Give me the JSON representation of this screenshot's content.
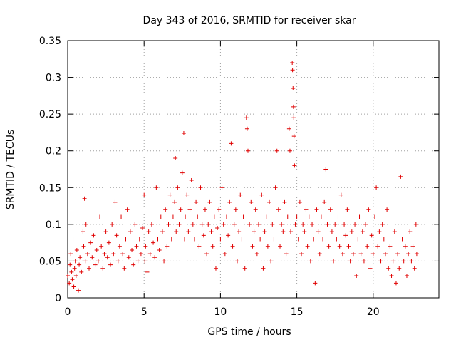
{
  "chart_data": {
    "type": "scatter",
    "title": "Day 343 of 2016, SRMTID for receiver skar",
    "xlabel": "GPS time / hours",
    "ylabel": "SRMTID / TECUs",
    "xlim": [
      0,
      24.3
    ],
    "ylim": [
      0,
      0.35
    ],
    "xticks": [
      0,
      5,
      10,
      15,
      20
    ],
    "xtick_labels": [
      "0",
      "5",
      "10",
      "15",
      "20"
    ],
    "yticks": [
      0,
      0.05,
      0.1,
      0.15,
      0.2,
      0.25,
      0.3,
      0.35
    ],
    "ytick_labels": [
      "0",
      "0.05",
      "0.1",
      "0.15",
      "0.2",
      "0.25",
      "0.3",
      "0.35"
    ],
    "grid": true,
    "marker": "plus",
    "color": "#e00000",
    "series": [
      {
        "name": "SRMTID",
        "points": [
          [
            0.0,
            0.03
          ],
          [
            0.1,
            0.02
          ],
          [
            0.15,
            0.045
          ],
          [
            0.2,
            0.06
          ],
          [
            0.25,
            0.035
          ],
          [
            0.3,
            0.025
          ],
          [
            0.35,
            0.08
          ],
          [
            0.4,
            0.015
          ],
          [
            0.45,
            0.04
          ],
          [
            0.5,
            0.05
          ],
          [
            0.55,
            0.03
          ],
          [
            0.6,
            0.065
          ],
          [
            0.7,
            0.01
          ],
          [
            0.75,
            0.045
          ],
          [
            0.8,
            0.055
          ],
          [
            0.9,
            0.035
          ],
          [
            1.0,
            0.09
          ],
          [
            1.05,
            0.07
          ],
          [
            1.1,
            0.135
          ],
          [
            1.15,
            0.05
          ],
          [
            1.2,
            0.1
          ],
          [
            1.3,
            0.06
          ],
          [
            1.4,
            0.04
          ],
          [
            1.5,
            0.075
          ],
          [
            1.6,
            0.055
          ],
          [
            1.7,
            0.085
          ],
          [
            1.8,
            0.045
          ],
          [
            1.9,
            0.065
          ],
          [
            2.0,
            0.05
          ],
          [
            2.1,
            0.11
          ],
          [
            2.2,
            0.07
          ],
          [
            2.3,
            0.04
          ],
          [
            2.4,
            0.06
          ],
          [
            2.5,
            0.09
          ],
          [
            2.6,
            0.055
          ],
          [
            2.7,
            0.075
          ],
          [
            2.8,
            0.045
          ],
          [
            2.9,
            0.1
          ],
          [
            3.0,
            0.06
          ],
          [
            3.1,
            0.13
          ],
          [
            3.2,
            0.085
          ],
          [
            3.3,
            0.05
          ],
          [
            3.4,
            0.07
          ],
          [
            3.5,
            0.11
          ],
          [
            3.6,
            0.06
          ],
          [
            3.7,
            0.04
          ],
          [
            3.8,
            0.08
          ],
          [
            3.9,
            0.12
          ],
          [
            4.0,
            0.055
          ],
          [
            4.1,
            0.09
          ],
          [
            4.2,
            0.065
          ],
          [
            4.3,
            0.045
          ],
          [
            4.4,
            0.1
          ],
          [
            4.5,
            0.07
          ],
          [
            4.6,
            0.05
          ],
          [
            4.7,
            0.08
          ],
          [
            4.8,
            0.06
          ],
          [
            4.9,
            0.095
          ],
          [
            5.0,
            0.14
          ],
          [
            5.05,
            0.05
          ],
          [
            5.1,
            0.07
          ],
          [
            5.2,
            0.035
          ],
          [
            5.3,
            0.09
          ],
          [
            5.4,
            0.06
          ],
          [
            5.5,
            0.1
          ],
          [
            5.6,
            0.075
          ],
          [
            5.7,
            0.055
          ],
          [
            5.8,
            0.15
          ],
          [
            5.9,
            0.08
          ],
          [
            6.0,
            0.065
          ],
          [
            6.1,
            0.11
          ],
          [
            6.2,
            0.09
          ],
          [
            6.3,
            0.05
          ],
          [
            6.4,
            0.12
          ],
          [
            6.5,
            0.07
          ],
          [
            6.6,
            0.1
          ],
          [
            6.7,
            0.14
          ],
          [
            6.8,
            0.08
          ],
          [
            6.9,
            0.11
          ],
          [
            7.0,
            0.13
          ],
          [
            7.05,
            0.19
          ],
          [
            7.1,
            0.09
          ],
          [
            7.2,
            0.15
          ],
          [
            7.3,
            0.1
          ],
          [
            7.4,
            0.12
          ],
          [
            7.5,
            0.17
          ],
          [
            7.6,
            0.224
          ],
          [
            7.65,
            0.08
          ],
          [
            7.7,
            0.11
          ],
          [
            7.8,
            0.14
          ],
          [
            7.9,
            0.09
          ],
          [
            8.0,
            0.12
          ],
          [
            8.1,
            0.16
          ],
          [
            8.2,
            0.1
          ],
          [
            8.3,
            0.08
          ],
          [
            8.4,
            0.13
          ],
          [
            8.5,
            0.11
          ],
          [
            8.6,
            0.07
          ],
          [
            8.7,
            0.15
          ],
          [
            8.8,
            0.1
          ],
          [
            8.9,
            0.085
          ],
          [
            9.0,
            0.12
          ],
          [
            9.1,
            0.06
          ],
          [
            9.2,
            0.1
          ],
          [
            9.3,
            0.13
          ],
          [
            9.4,
            0.09
          ],
          [
            9.5,
            0.07
          ],
          [
            9.6,
            0.11
          ],
          [
            9.7,
            0.04
          ],
          [
            9.8,
            0.095
          ],
          [
            9.9,
            0.12
          ],
          [
            10.0,
            0.08
          ],
          [
            10.1,
            0.15
          ],
          [
            10.2,
            0.1
          ],
          [
            10.3,
            0.06
          ],
          [
            10.4,
            0.11
          ],
          [
            10.5,
            0.085
          ],
          [
            10.6,
            0.13
          ],
          [
            10.7,
            0.21
          ],
          [
            10.8,
            0.07
          ],
          [
            10.9,
            0.1
          ],
          [
            11.0,
            0.12
          ],
          [
            11.1,
            0.05
          ],
          [
            11.2,
            0.09
          ],
          [
            11.3,
            0.14
          ],
          [
            11.4,
            0.08
          ],
          [
            11.5,
            0.11
          ],
          [
            11.6,
            0.04
          ],
          [
            11.7,
            0.245
          ],
          [
            11.75,
            0.23
          ],
          [
            11.8,
            0.2
          ],
          [
            11.9,
            0.1
          ],
          [
            12.0,
            0.13
          ],
          [
            12.1,
            0.07
          ],
          [
            12.2,
            0.09
          ],
          [
            12.3,
            0.12
          ],
          [
            12.4,
            0.06
          ],
          [
            12.5,
            0.1
          ],
          [
            12.6,
            0.08
          ],
          [
            12.7,
            0.14
          ],
          [
            12.8,
            0.04
          ],
          [
            12.9,
            0.09
          ],
          [
            13.0,
            0.11
          ],
          [
            13.1,
            0.07
          ],
          [
            13.2,
            0.13
          ],
          [
            13.3,
            0.05
          ],
          [
            13.4,
            0.1
          ],
          [
            13.5,
            0.08
          ],
          [
            13.6,
            0.15
          ],
          [
            13.7,
            0.2
          ],
          [
            13.8,
            0.12
          ],
          [
            13.9,
            0.07
          ],
          [
            14.0,
            0.1
          ],
          [
            14.1,
            0.09
          ],
          [
            14.2,
            0.13
          ],
          [
            14.3,
            0.06
          ],
          [
            14.4,
            0.11
          ],
          [
            14.5,
            0.23
          ],
          [
            14.55,
            0.2
          ],
          [
            14.6,
            0.09
          ],
          [
            14.7,
            0.32
          ],
          [
            14.72,
            0.31
          ],
          [
            14.75,
            0.285
          ],
          [
            14.78,
            0.26
          ],
          [
            14.8,
            0.245
          ],
          [
            14.82,
            0.22
          ],
          [
            14.85,
            0.18
          ],
          [
            14.9,
            0.1
          ],
          [
            15.0,
            0.11
          ],
          [
            15.1,
            0.08
          ],
          [
            15.2,
            0.13
          ],
          [
            15.3,
            0.06
          ],
          [
            15.4,
            0.1
          ],
          [
            15.5,
            0.09
          ],
          [
            15.6,
            0.12
          ],
          [
            15.7,
            0.07
          ],
          [
            15.8,
            0.11
          ],
          [
            15.9,
            0.05
          ],
          [
            16.0,
            0.1
          ],
          [
            16.1,
            0.08
          ],
          [
            16.2,
            0.02
          ],
          [
            16.3,
            0.12
          ],
          [
            16.4,
            0.09
          ],
          [
            16.5,
            0.06
          ],
          [
            16.6,
            0.11
          ],
          [
            16.7,
            0.08
          ],
          [
            16.8,
            0.13
          ],
          [
            16.9,
            0.175
          ],
          [
            17.0,
            0.1
          ],
          [
            17.1,
            0.07
          ],
          [
            17.2,
            0.12
          ],
          [
            17.3,
            0.09
          ],
          [
            17.4,
            0.05
          ],
          [
            17.5,
            0.1
          ],
          [
            17.6,
            0.08
          ],
          [
            17.7,
            0.11
          ],
          [
            17.8,
            0.07
          ],
          [
            17.9,
            0.14
          ],
          [
            18.0,
            0.06
          ],
          [
            18.1,
            0.1
          ],
          [
            18.2,
            0.085
          ],
          [
            18.3,
            0.12
          ],
          [
            18.4,
            0.07
          ],
          [
            18.5,
            0.05
          ],
          [
            18.6,
            0.09
          ],
          [
            18.7,
            0.06
          ],
          [
            18.8,
            0.1
          ],
          [
            18.9,
            0.03
          ],
          [
            19.0,
            0.08
          ],
          [
            19.1,
            0.11
          ],
          [
            19.2,
            0.06
          ],
          [
            19.3,
            0.09
          ],
          [
            19.4,
            0.05
          ],
          [
            19.5,
            0.1
          ],
          [
            19.6,
            0.07
          ],
          [
            19.7,
            0.12
          ],
          [
            19.8,
            0.04
          ],
          [
            19.9,
            0.085
          ],
          [
            20.0,
            0.06
          ],
          [
            20.1,
            0.11
          ],
          [
            20.2,
            0.15
          ],
          [
            20.3,
            0.07
          ],
          [
            20.4,
            0.09
          ],
          [
            20.5,
            0.05
          ],
          [
            20.6,
            0.1
          ],
          [
            20.7,
            0.08
          ],
          [
            20.8,
            0.06
          ],
          [
            20.9,
            0.12
          ],
          [
            21.0,
            0.04
          ],
          [
            21.1,
            0.07
          ],
          [
            21.2,
            0.03
          ],
          [
            21.3,
            0.05
          ],
          [
            21.4,
            0.09
          ],
          [
            21.5,
            0.02
          ],
          [
            21.6,
            0.06
          ],
          [
            21.7,
            0.04
          ],
          [
            21.8,
            0.165
          ],
          [
            21.9,
            0.08
          ],
          [
            22.0,
            0.05
          ],
          [
            22.1,
            0.07
          ],
          [
            22.2,
            0.03
          ],
          [
            22.3,
            0.06
          ],
          [
            22.4,
            0.09
          ],
          [
            22.5,
            0.05
          ],
          [
            22.6,
            0.07
          ],
          [
            22.7,
            0.04
          ],
          [
            22.8,
            0.1
          ],
          [
            22.85,
            0.06
          ]
        ]
      }
    ]
  }
}
